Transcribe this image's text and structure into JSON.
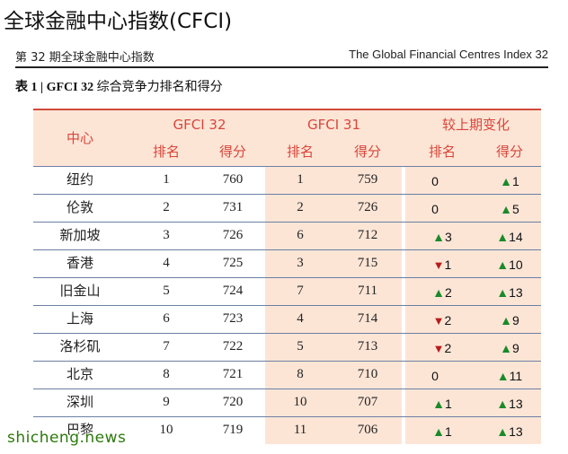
{
  "main_title": "全球金融中心指数(CFCI)",
  "report": {
    "left": "第 32 期全球金融中心指数",
    "right": "The Global Financial Centres Index 32"
  },
  "caption": {
    "prefix": "表 1 | GFCI 32",
    "text": " 综合竞争力排名和得分"
  },
  "table": {
    "col_city": "中心",
    "group_gfci32": "GFCI 32",
    "group_gfci31": "GFCI 31",
    "group_change": "较上期变化",
    "sub_rank": "排名",
    "sub_score": "得分",
    "rows": [
      {
        "city": "纽约",
        "rank32": "1",
        "score32": "760",
        "rank31": "1",
        "score31": "759",
        "rank_chg": "0",
        "rank_dir": "none",
        "score_chg": "1",
        "score_dir": "up"
      },
      {
        "city": "伦敦",
        "rank32": "2",
        "score32": "731",
        "rank31": "2",
        "score31": "726",
        "rank_chg": "0",
        "rank_dir": "none",
        "score_chg": "5",
        "score_dir": "up"
      },
      {
        "city": "新加坡",
        "rank32": "3",
        "score32": "726",
        "rank31": "6",
        "score31": "712",
        "rank_chg": "3",
        "rank_dir": "up",
        "score_chg": "14",
        "score_dir": "up"
      },
      {
        "city": "香港",
        "rank32": "4",
        "score32": "725",
        "rank31": "3",
        "score31": "715",
        "rank_chg": "1",
        "rank_dir": "down",
        "score_chg": "10",
        "score_dir": "up"
      },
      {
        "city": "旧金山",
        "rank32": "5",
        "score32": "724",
        "rank31": "7",
        "score31": "711",
        "rank_chg": "2",
        "rank_dir": "up",
        "score_chg": "13",
        "score_dir": "up"
      },
      {
        "city": "上海",
        "rank32": "6",
        "score32": "723",
        "rank31": "4",
        "score31": "714",
        "rank_chg": "2",
        "rank_dir": "down",
        "score_chg": "9",
        "score_dir": "up"
      },
      {
        "city": "洛杉矶",
        "rank32": "7",
        "score32": "722",
        "rank31": "5",
        "score31": "713",
        "rank_chg": "2",
        "rank_dir": "down",
        "score_chg": "9",
        "score_dir": "up"
      },
      {
        "city": "北京",
        "rank32": "8",
        "score32": "721",
        "rank31": "8",
        "score31": "710",
        "rank_chg": "0",
        "rank_dir": "none",
        "score_chg": "11",
        "score_dir": "up"
      },
      {
        "city": "深圳",
        "rank32": "9",
        "score32": "720",
        "rank31": "10",
        "score31": "707",
        "rank_chg": "1",
        "rank_dir": "up",
        "score_chg": "13",
        "score_dir": "up"
      },
      {
        "city": "巴黎",
        "rank32": "10",
        "score32": "719",
        "rank31": "11",
        "score31": "706",
        "rank_chg": "1",
        "rank_dir": "up",
        "score_chg": "13",
        "score_dir": "up"
      }
    ]
  },
  "colors": {
    "header_text": "#d8463a",
    "band": "#fde5d6",
    "up": "#1a8a2a",
    "down": "#b71c1c"
  },
  "watermark": "shicheng.news"
}
